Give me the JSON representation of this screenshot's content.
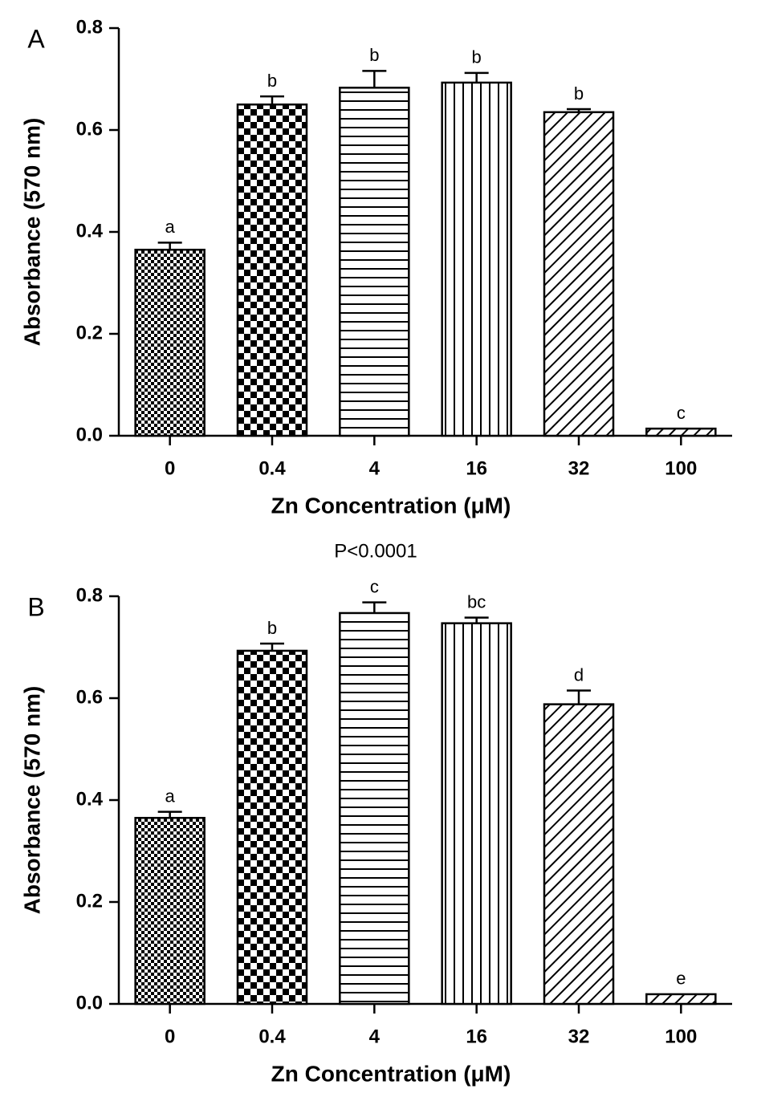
{
  "chart_data": [
    {
      "type": "bar",
      "panel": "A",
      "title": "P<0.0001",
      "x_label": "Zn Concentration (μM)",
      "y_label": "Absorbance (570 nm)",
      "categories": [
        "0",
        "0.4",
        "4",
        "16",
        "32",
        "100"
      ],
      "values": [
        0.365,
        0.65,
        0.683,
        0.693,
        0.635,
        0.014
      ],
      "errors": [
        0.014,
        0.016,
        0.033,
        0.019,
        0.006,
        0
      ],
      "letters": [
        "a",
        "b",
        "b",
        "b",
        "b",
        "c"
      ],
      "patterns": [
        "fine-check",
        "bold-check",
        "hlines",
        "vlines",
        "diag",
        "diag"
      ],
      "color": "#000000",
      "ylim": [
        0,
        0.8
      ],
      "yticks": [
        {
          "value": 0,
          "label": "0.0"
        },
        {
          "value": 0.2,
          "label": "0.2"
        },
        {
          "value": 0.4,
          "label": "0.4"
        },
        {
          "value": 0.6,
          "label": "0.6"
        },
        {
          "value": 0.8,
          "label": "0.8"
        }
      ]
    },
    {
      "type": "bar",
      "panel": "B",
      "title": "P<0.0001",
      "x_label": "Zn Concentration (μM)",
      "y_label": "Absorbance (570 nm)",
      "categories": [
        "0",
        "0.4",
        "4",
        "16",
        "32",
        "100"
      ],
      "values": [
        0.365,
        0.693,
        0.767,
        0.747,
        0.588,
        0.019
      ],
      "errors": [
        0.012,
        0.014,
        0.021,
        0.011,
        0.027,
        0
      ],
      "letters": [
        "a",
        "b",
        "c",
        "bc",
        "d",
        "e"
      ],
      "patterns": [
        "fine-check",
        "bold-check",
        "hlines",
        "vlines",
        "diag",
        "diag"
      ],
      "color": "#000000",
      "ylim": [
        0,
        0.8
      ],
      "yticks": [
        {
          "value": 0,
          "label": "0.0"
        },
        {
          "value": 0.2,
          "label": "0.2"
        },
        {
          "value": 0.4,
          "label": "0.4"
        },
        {
          "value": 0.6,
          "label": "0.6"
        },
        {
          "value": 0.8,
          "label": "0.8"
        }
      ]
    }
  ]
}
